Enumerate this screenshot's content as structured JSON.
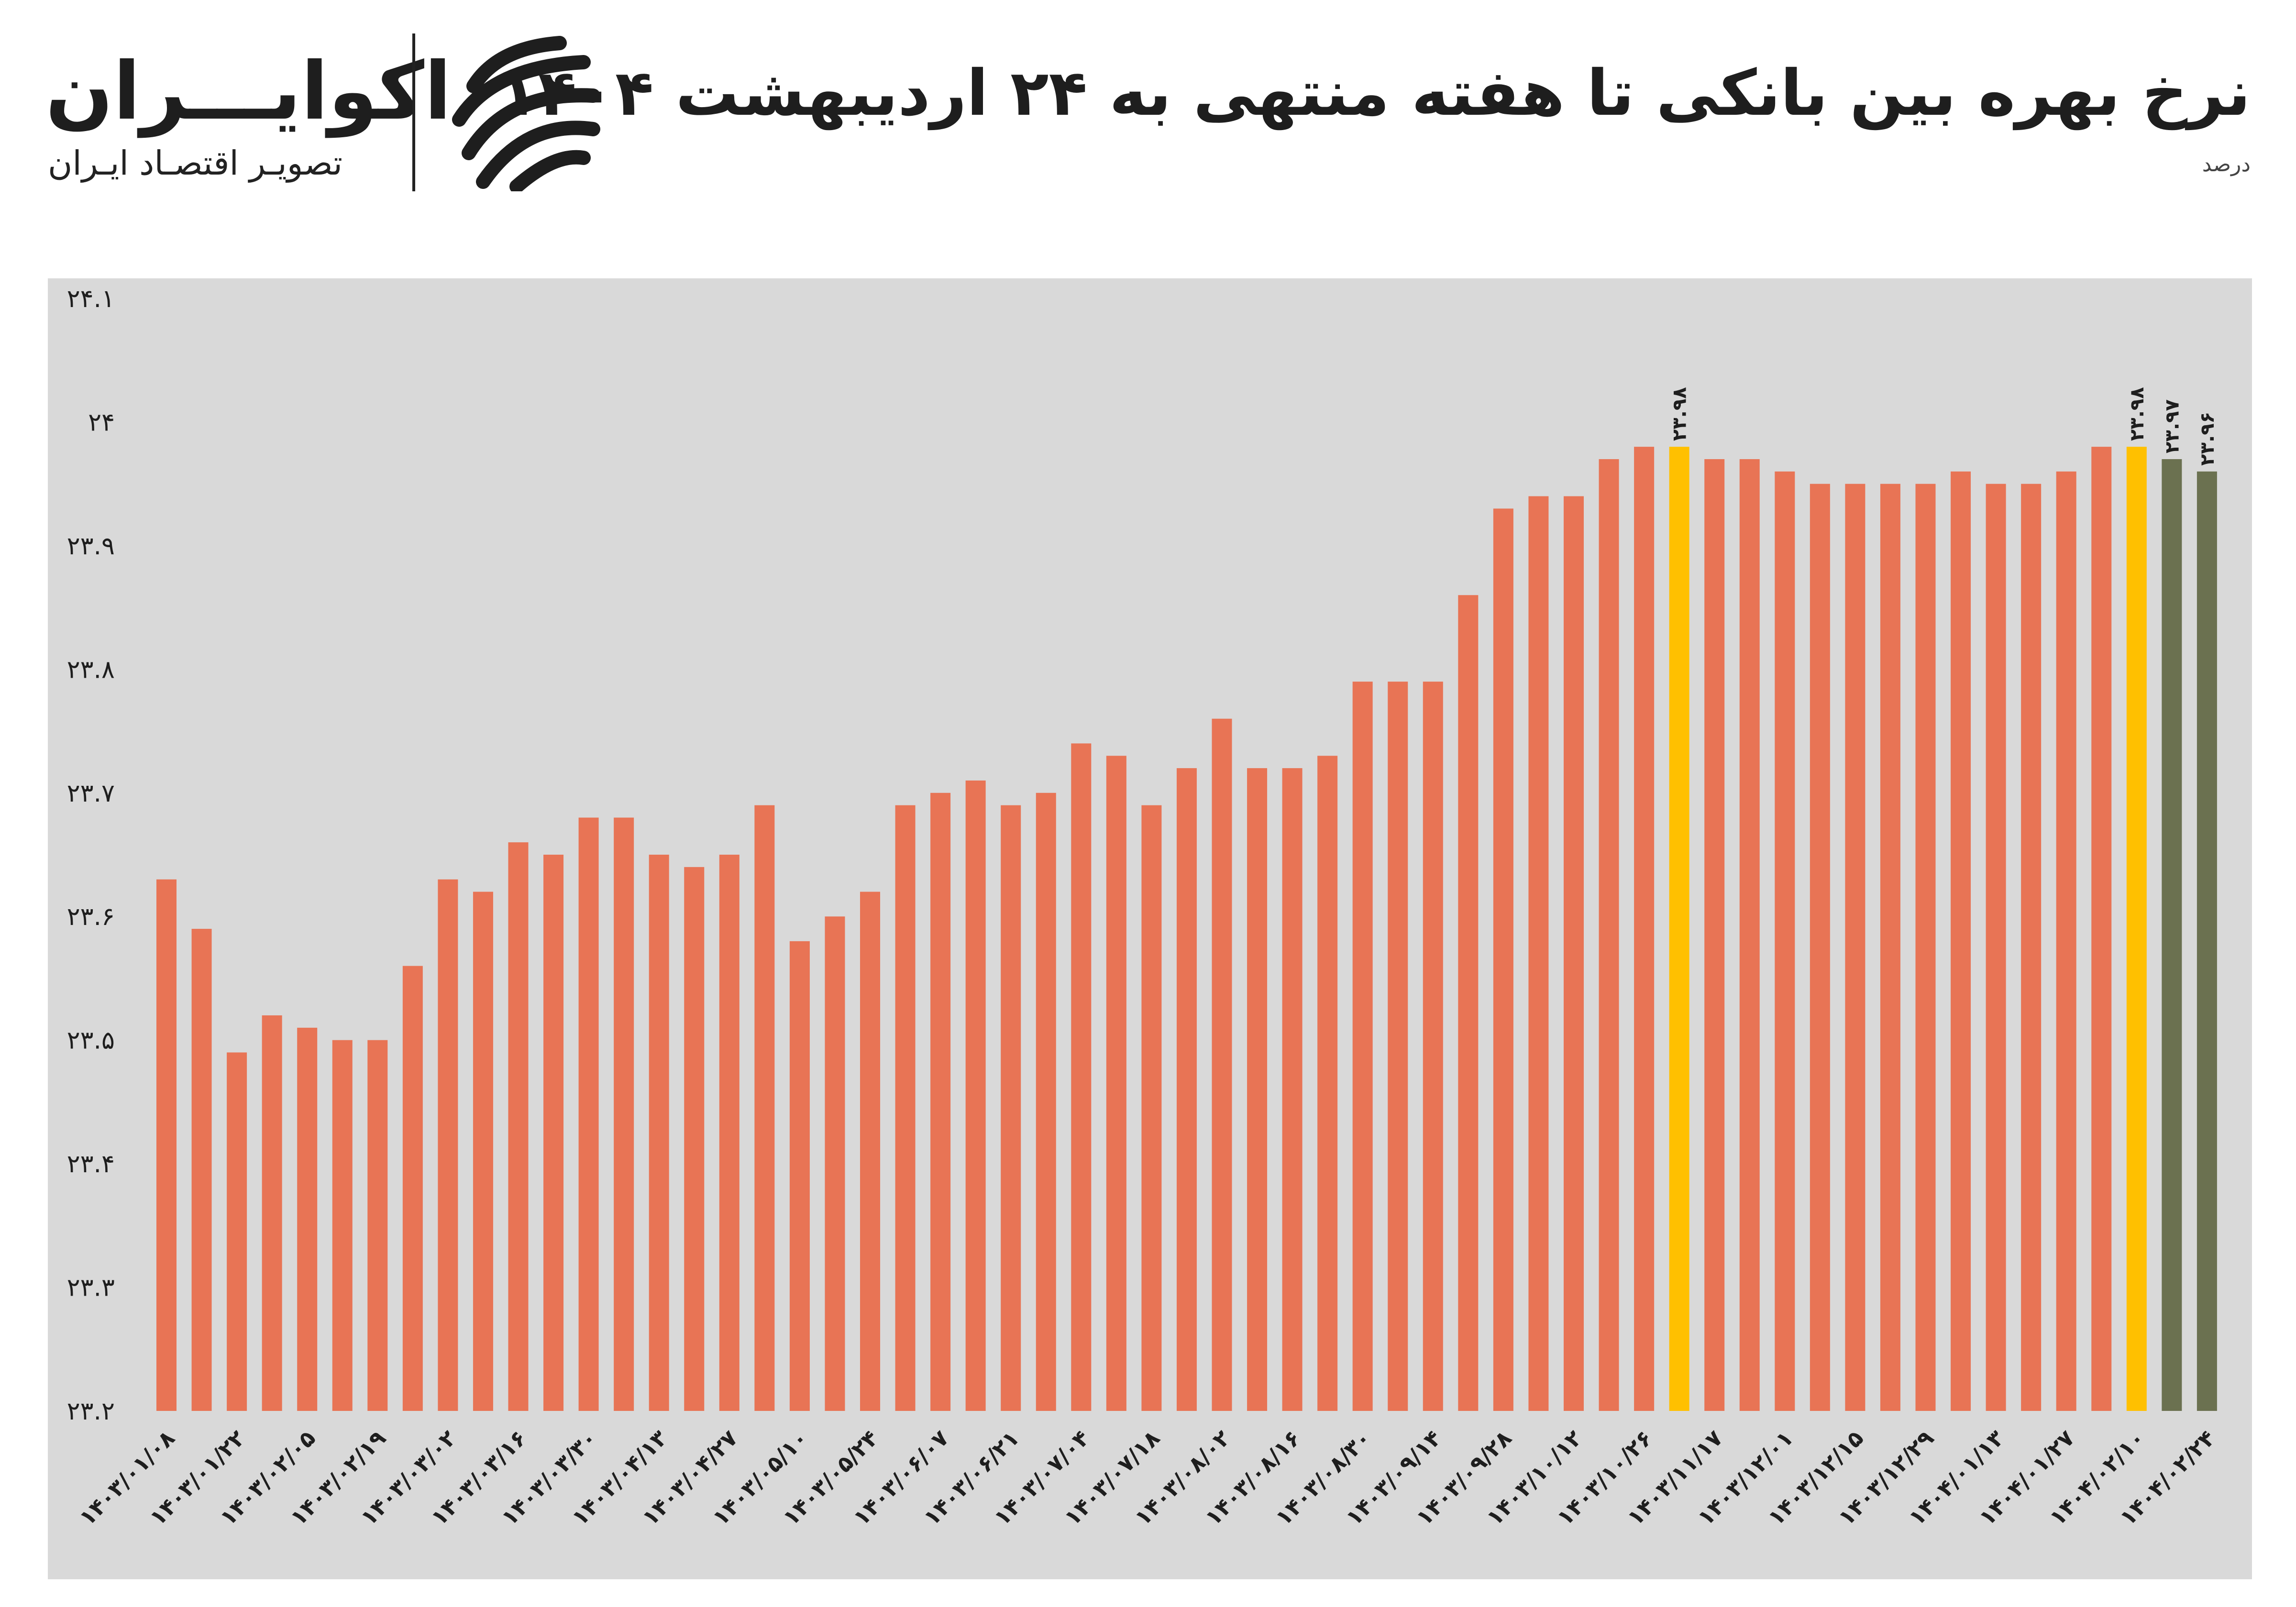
{
  "header": {
    "title": "نرخ بهره بین بانکی تا هفته منتهی به ۲۴ اردیبهشت ۱۴۰۴",
    "unit": "درصد"
  },
  "brand": {
    "name": "اکوایـــران",
    "tagline": "تصویـر اقتصـاد ایـران",
    "logo_icon": "ecoiran-stripes-icon"
  },
  "colors": {
    "background": "#d9d9d9",
    "bar_default": "#e87455",
    "bar_highlight": "#ffc000",
    "bar_recent": "#6b7150",
    "axis_text": "#1e1e1e"
  },
  "chart_data": {
    "type": "bar",
    "title": "نرخ بهره بین بانکی تا هفته منتهی به ۲۴ اردیبهشت ۱۴۰۴",
    "ylabel": "درصد",
    "xlabel": "",
    "ylim": [
      23.2,
      24.1
    ],
    "yticks": [
      "۲۳.۲",
      "۲۳.۳",
      "۲۳.۴",
      "۲۳.۵",
      "۲۳.۶",
      "۲۳.۷",
      "۲۳.۸",
      "۲۳.۹",
      "۲۴",
      "۲۴.۱"
    ],
    "ytick_values": [
      23.2,
      23.3,
      23.4,
      23.5,
      23.6,
      23.7,
      23.8,
      23.9,
      24.0,
      24.1
    ],
    "grid": false,
    "legend": "none",
    "x_tick_labels": [
      "۱۴۰۳/۰۱/۰۸",
      "۱۴۰۳/۰۱/۲۲",
      "۱۴۰۳/۰۲/۰۵",
      "۱۴۰۳/۰۲/۱۹",
      "۱۴۰۳/۰۳/۰۲",
      "۱۴۰۳/۰۳/۱۶",
      "۱۴۰۳/۰۳/۳۰",
      "۱۴۰۳/۰۴/۱۳",
      "۱۴۰۳/۰۴/۲۷",
      "۱۴۰۳/۰۵/۱۰",
      "۱۴۰۳/۰۵/۲۴",
      "۱۴۰۳/۰۶/۰۷",
      "۱۴۰۳/۰۶/۲۱",
      "۱۴۰۳/۰۷/۰۴",
      "۱۴۰۳/۰۷/۱۸",
      "۱۴۰۳/۰۸/۰۲",
      "۱۴۰۳/۰۸/۱۶",
      "۱۴۰۳/۰۸/۳۰",
      "۱۴۰۳/۰۹/۱۴",
      "۱۴۰۳/۰۹/۲۸",
      "۱۴۰۳/۱۰/۱۲",
      "۱۴۰۳/۱۰/۲۶",
      "۱۴۰۳/۱۱/۱۷",
      "۱۴۰۳/۱۲/۰۱",
      "۱۴۰۳/۱۲/۱۵",
      "۱۴۰۳/۱۲/۲۹",
      "۱۴۰۴/۰۱/۱۳",
      "۱۴۰۴/۰۱/۲۷",
      "۱۴۰۴/۰۲/۱۰",
      "۱۴۰۴/۰۲/۲۴"
    ],
    "values": [
      23.63,
      23.59,
      23.49,
      23.52,
      23.51,
      23.5,
      23.5,
      23.56,
      23.63,
      23.62,
      23.66,
      23.65,
      23.68,
      23.68,
      23.65,
      23.64,
      23.65,
      23.69,
      23.58,
      23.6,
      23.62,
      23.69,
      23.7,
      23.71,
      23.69,
      23.7,
      23.74,
      23.73,
      23.69,
      23.72,
      23.76,
      23.72,
      23.72,
      23.73,
      23.79,
      23.79,
      23.79,
      23.86,
      23.93,
      23.94,
      23.94,
      23.97,
      23.98,
      23.98,
      23.97,
      23.97,
      23.96,
      23.95,
      23.95,
      23.95,
      23.95,
      23.96,
      23.95,
      23.95,
      23.96,
      23.98,
      23.98,
      23.97,
      23.96
    ],
    "colors": [
      "default",
      "default",
      "default",
      "default",
      "default",
      "default",
      "default",
      "default",
      "default",
      "default",
      "default",
      "default",
      "default",
      "default",
      "default",
      "default",
      "default",
      "default",
      "default",
      "default",
      "default",
      "default",
      "default",
      "default",
      "default",
      "default",
      "default",
      "default",
      "default",
      "default",
      "default",
      "default",
      "default",
      "default",
      "default",
      "default",
      "default",
      "default",
      "default",
      "default",
      "default",
      "default",
      "default",
      "highlight",
      "default",
      "default",
      "default",
      "default",
      "default",
      "default",
      "default",
      "default",
      "default",
      "default",
      "default",
      "default",
      "highlight",
      "recent",
      "recent"
    ],
    "annotations": [
      {
        "bar_index": 43,
        "text": "۲۳.۹۸"
      },
      {
        "bar_index": 56,
        "text": "۲۳.۹۸"
      },
      {
        "bar_index": 57,
        "text": "۲۳.۹۷"
      },
      {
        "bar_index": 58,
        "text": "۲۳.۹۶"
      }
    ]
  }
}
